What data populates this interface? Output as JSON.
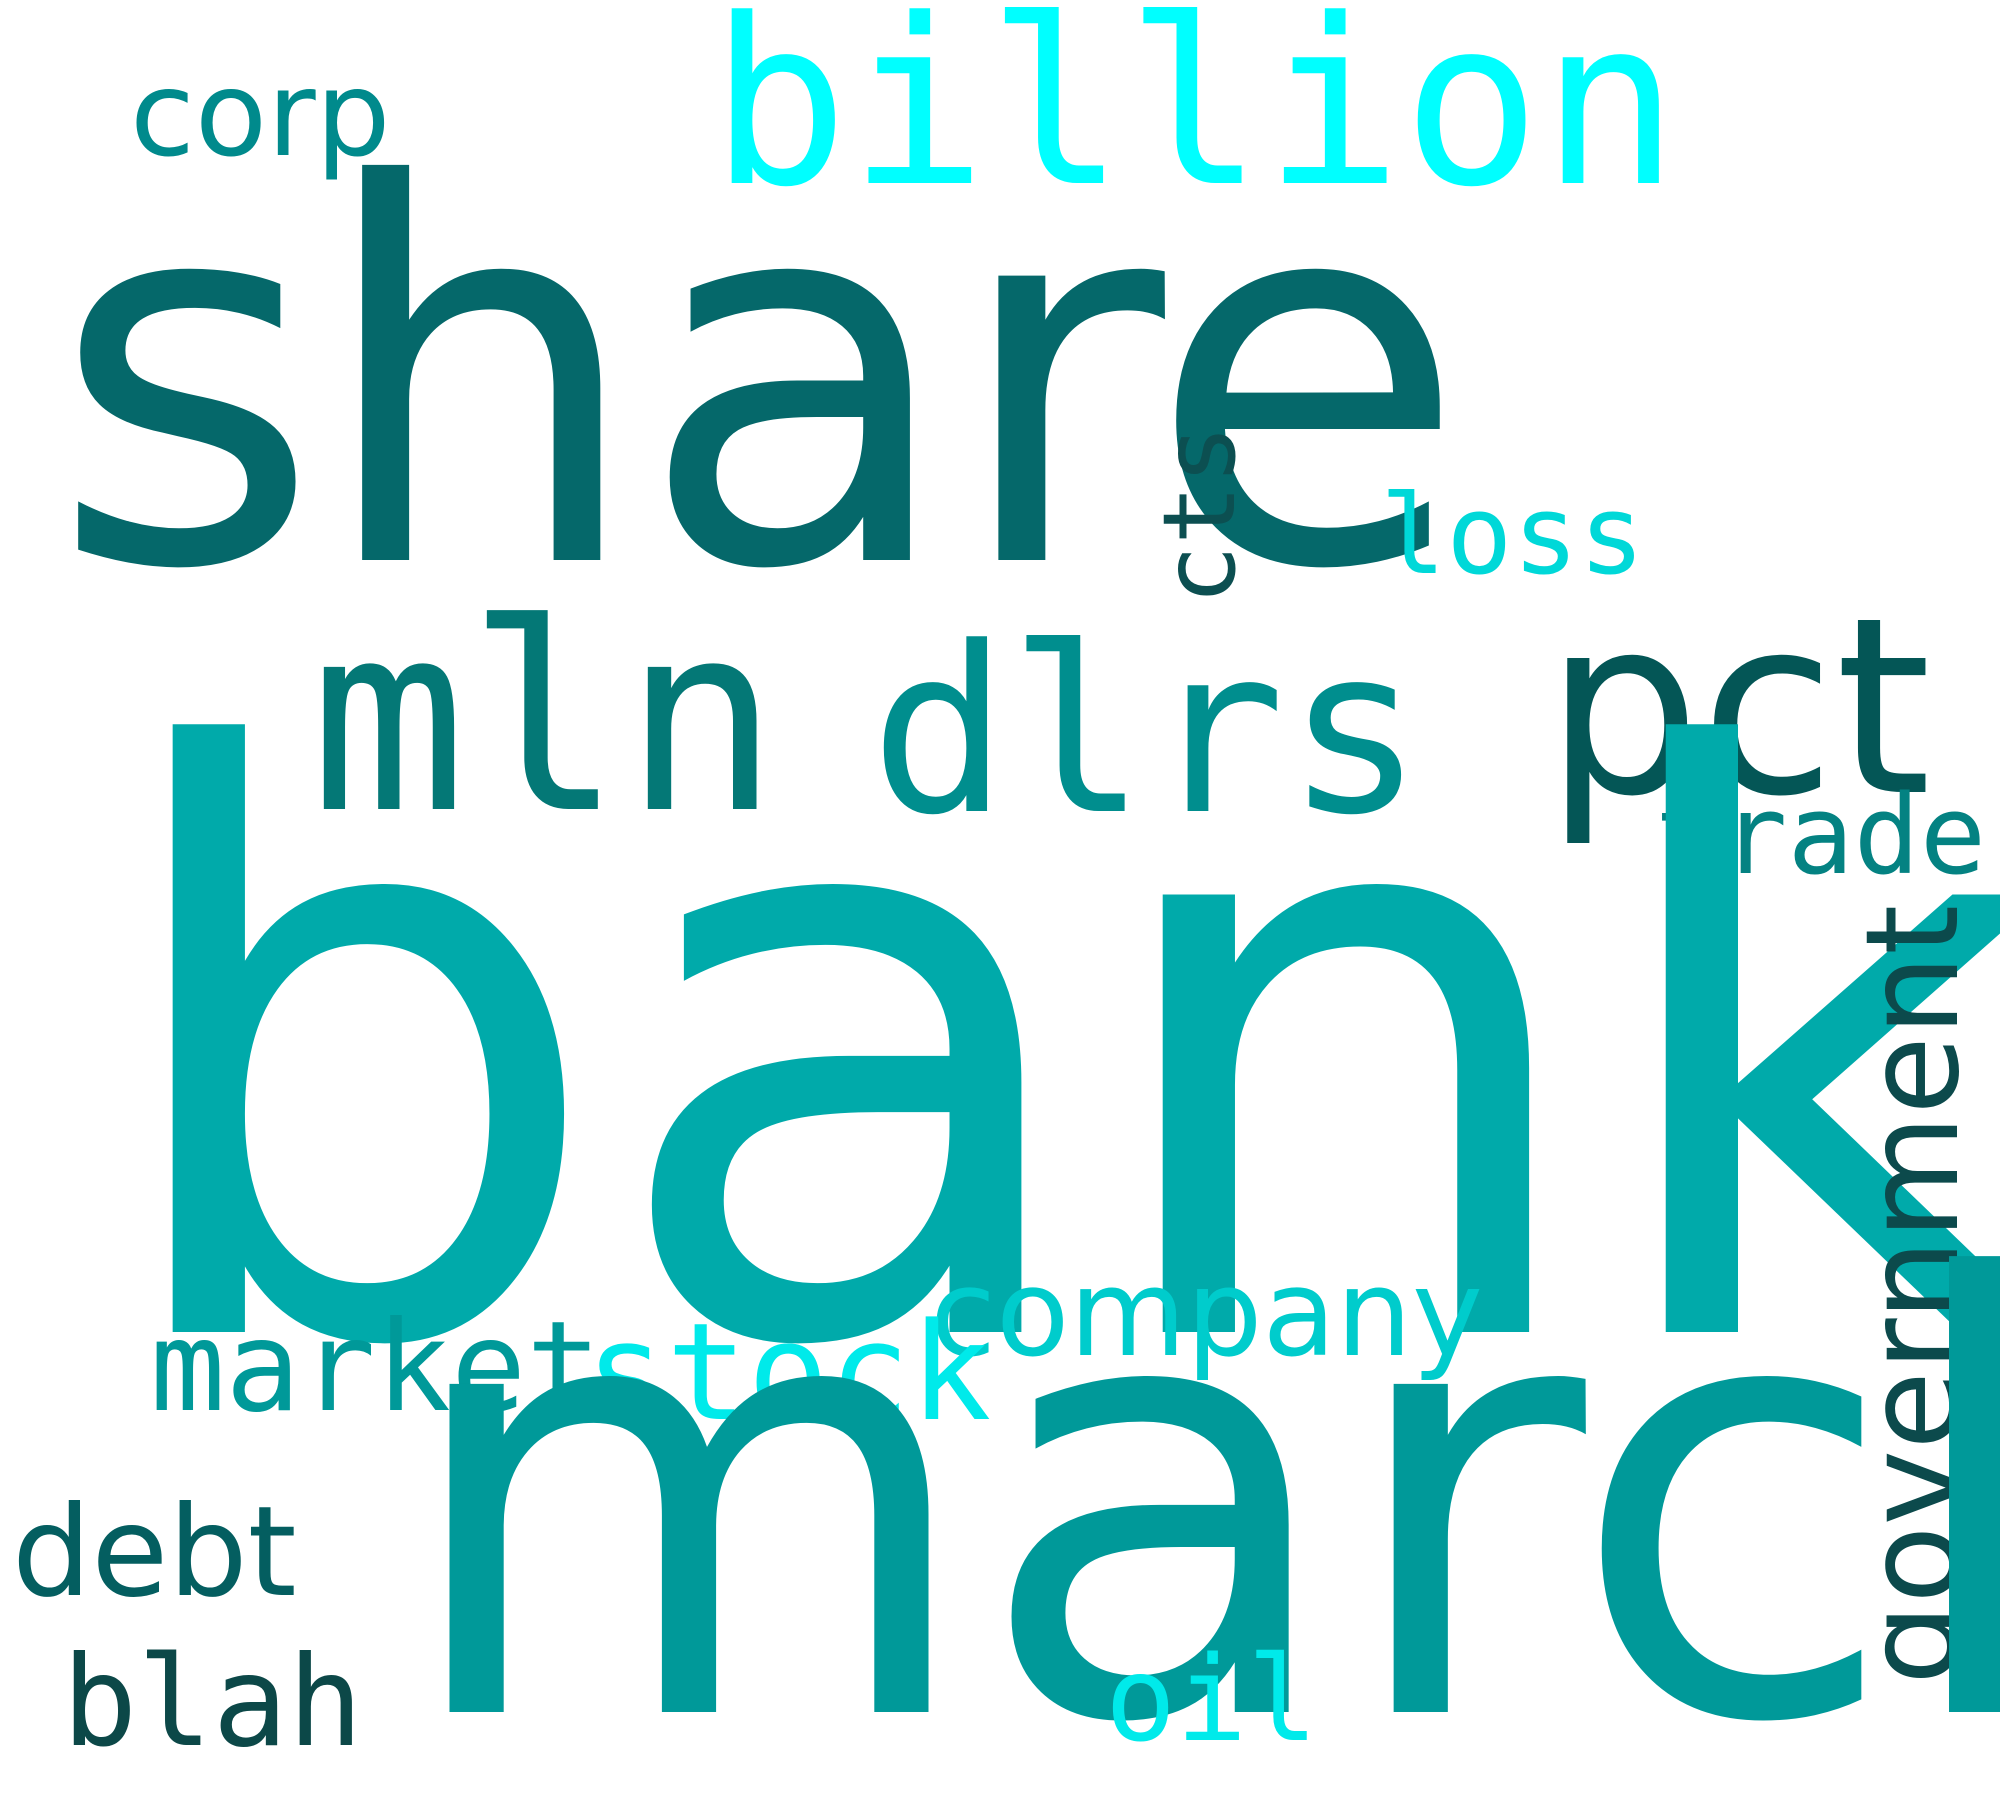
{
  "words": {
    "share": {
      "text": "share",
      "color": "#05686a"
    },
    "billion": {
      "text": "billion",
      "color": "#00ffff"
    },
    "corp": {
      "text": "corp",
      "color": "#008a8c"
    },
    "cts": {
      "text": "cts",
      "color": "#0c4f51"
    },
    "loss": {
      "text": "loss",
      "color": "#00d8d8"
    },
    "mln": {
      "text": "mln",
      "color": "#047876"
    },
    "dlrs": {
      "text": "dlrs",
      "color": "#008e8e"
    },
    "pct": {
      "text": "pct",
      "color": "#045656"
    },
    "trade": {
      "text": "trade",
      "color": "#048282"
    },
    "bank": {
      "text": "bank",
      "color": "#00aaaa"
    },
    "company": {
      "text": "company",
      "color": "#00cccc"
    },
    "market": {
      "text": "market",
      "color": "#009999"
    },
    "stock": {
      "text": "stock",
      "color": "#00eaea"
    },
    "government": {
      "text": "government",
      "color": "#0c4a4c"
    },
    "march": {
      "text": "march",
      "color": "#009999"
    },
    "debt": {
      "text": "debt",
      "color": "#045e60"
    },
    "blah": {
      "text": "blah",
      "color": "#0c4848"
    },
    "oil": {
      "text": "oil",
      "color": "#00eaea"
    }
  }
}
